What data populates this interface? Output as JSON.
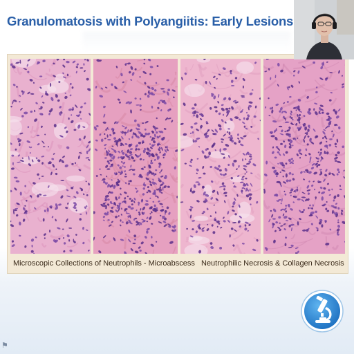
{
  "slide": {
    "title": "Granulomatosis with Polyangiitis: Early Lesions",
    "captions": {
      "left": "Microscopic Collections of Neutrophils - Microabscess",
      "right": "Neutrophilic Necrosis & Collagen Necrosis"
    }
  },
  "colors": {
    "title": "#2a5fa8",
    "tissue_pink": "#e8a6c6",
    "nuclei_purple": "#6a3d94",
    "figure_bg": "#f3e9d6",
    "logo_blue": "#2a86d4"
  },
  "icons": {
    "logo": "microscope-icon",
    "webcam": "presenter-video",
    "corner": "flag-icon"
  }
}
